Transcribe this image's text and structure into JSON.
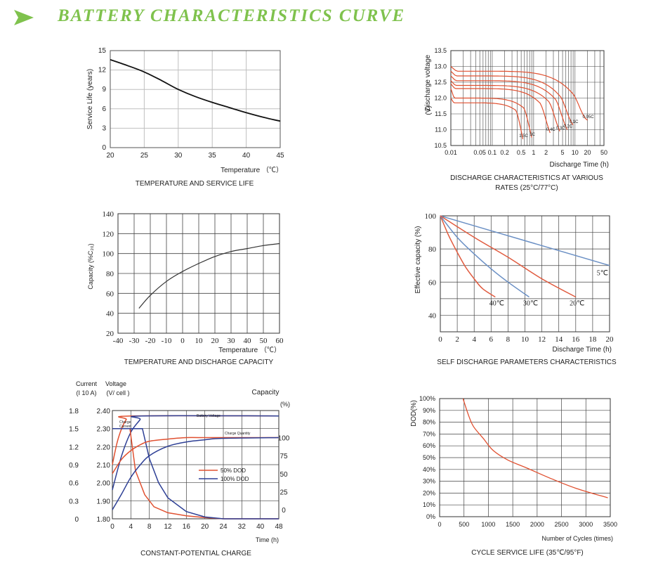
{
  "page": {
    "title": "BATTERY  CHARACTERISTICS CURVE",
    "accent": "#7fc24d"
  },
  "chart_data": [
    {
      "id": "life",
      "type": "line",
      "title": "TEMPERATURE AND SERVICE LIFE",
      "xlabel": "Temperature （℃）",
      "ylabel": "Service Life (years)",
      "xlim": [
        20,
        45
      ],
      "ylim": [
        0,
        15
      ],
      "xticks": [
        20,
        25,
        30,
        35,
        40,
        45
      ],
      "yticks": [
        0,
        3,
        6,
        9,
        12,
        15
      ],
      "grid": true,
      "series": [
        {
          "color": "#111111",
          "x": [
            20,
            22.5,
            25,
            27.5,
            30,
            32.5,
            35,
            37.5,
            40,
            42.5,
            45
          ],
          "y": [
            13.6,
            12.7,
            11.7,
            10.4,
            9.0,
            7.9,
            7.0,
            6.2,
            5.4,
            4.7,
            4.1
          ]
        }
      ]
    },
    {
      "id": "discharge",
      "type": "line",
      "title": "DISCHARGE CHARACTERISTICS AT VARIOUS RATES (25°C/77°C)",
      "xlabel": "Discharge Time (h)",
      "ylabel": "Discharge voltage (V)",
      "xscale": "log",
      "xlim": [
        0.01,
        50
      ],
      "ylim": [
        10.5,
        13.5
      ],
      "xticks": [
        0.01,
        0.05,
        0.1,
        0.2,
        0.5,
        1,
        2,
        5,
        10,
        20,
        50
      ],
      "xticklabels": [
        "0.01",
        "0.05",
        "0.1",
        "0.2",
        "0.5",
        "1",
        "2",
        "5",
        "10",
        "20",
        "50"
      ],
      "yticks": [
        10.5,
        11.0,
        11.5,
        12.0,
        12.5,
        13.0,
        13.5
      ],
      "yticklabels": [
        "10.5",
        "11.0",
        "11.5",
        "12.0",
        "12.5",
        "13.0",
        "13.5"
      ],
      "grid": true,
      "series": [
        {
          "label": "1.5C",
          "color": "#e05030",
          "end_time": 0.55,
          "start_v": 12.0,
          "flat_v": 11.85,
          "end_v": 10.7
        },
        {
          "label": "1C",
          "color": "#e05030",
          "end_time": 0.9,
          "start_v": 12.3,
          "flat_v": 12.0,
          "end_v": 10.75
        },
        {
          "label": "0.4C",
          "color": "#e05030",
          "end_time": 2.5,
          "start_v": 12.45,
          "flat_v": 12.3,
          "end_v": 10.9
        },
        {
          "label": "0.3C",
          "color": "#e05030",
          "end_time": 4.3,
          "start_v": 12.55,
          "flat_v": 12.4,
          "end_v": 10.95
        },
        {
          "label": "0.2C",
          "color": "#e05030",
          "end_time": 6.5,
          "start_v": 12.7,
          "flat_v": 12.55,
          "end_v": 11.0
        },
        {
          "label": "0.1C",
          "color": "#e05030",
          "end_time": 9.0,
          "start_v": 12.85,
          "flat_v": 12.7,
          "end_v": 11.15
        },
        {
          "label": "0.05C",
          "color": "#e05030",
          "end_time": 20.0,
          "start_v": 13.0,
          "flat_v": 12.85,
          "end_v": 11.3
        }
      ]
    },
    {
      "id": "capacity",
      "type": "line",
      "title": "TEMPERATURE AND DISCHARGE CAPACITY",
      "xlabel": "Temperature （℃）",
      "ylabel": "Capacity (%C₂₀)",
      "xlim": [
        -40,
        60
      ],
      "ylim": [
        20,
        140
      ],
      "xticks": [
        -40,
        -30,
        -20,
        -10,
        0,
        10,
        20,
        30,
        40,
        50,
        60
      ],
      "yticks": [
        20,
        40,
        60,
        80,
        100,
        120,
        140
      ],
      "grid": true,
      "series": [
        {
          "color": "#333333",
          "x": [
            -27,
            -20,
            -10,
            0,
            10,
            20,
            30,
            40,
            50,
            60
          ],
          "y": [
            45,
            58,
            72,
            82,
            90,
            97,
            102,
            105,
            108,
            110
          ]
        }
      ]
    },
    {
      "id": "selfdis",
      "type": "line",
      "title": "SELF DISCHARGE PARAMETERS CHARACTERISTICS",
      "xlabel": "Discharge Time (h)",
      "ylabel": "Effective capacity (%)",
      "xlim": [
        0,
        20
      ],
      "ylim": [
        30,
        100
      ],
      "xticks": [
        0,
        2,
        4,
        6,
        8,
        10,
        12,
        14,
        16,
        18,
        20
      ],
      "yticks": [
        40,
        60,
        80,
        100
      ],
      "grid": true,
      "series": [
        {
          "name": "5℃",
          "color": "#6a8fc4",
          "x": [
            0,
            10,
            20
          ],
          "y": [
            100,
            85,
            70
          ]
        },
        {
          "name": "40℃",
          "color": "#e05a3e",
          "x": [
            0,
            1,
            2,
            3,
            4,
            5,
            6.5
          ],
          "y": [
            100,
            88,
            78,
            69,
            62,
            56,
            51
          ]
        },
        {
          "name": "30℃",
          "color": "#6a8fc4",
          "x": [
            0,
            2,
            4,
            6,
            8,
            10.5
          ],
          "y": [
            100,
            87,
            77,
            68,
            60,
            51
          ]
        },
        {
          "name": "20℃",
          "color": "#e05a3e",
          "x": [
            0,
            4,
            8,
            12,
            16
          ],
          "y": [
            100,
            87,
            75,
            62,
            51
          ]
        }
      ]
    },
    {
      "id": "charge",
      "type": "line",
      "title": "CONSTANT-POTENTIAL CHARGE",
      "xlabel": "Time (h)",
      "x_category_labels": [
        "0",
        "4",
        "8",
        "12",
        "16",
        "20",
        "24",
        "32",
        "40",
        "48"
      ],
      "current_axis": {
        "label1": "Current",
        "label2": "(I 10 A)",
        "ticks": [
          "0",
          "0.3",
          "0.6",
          "0.9",
          "1.2",
          "1.5",
          "1.8"
        ]
      },
      "voltage_axis": {
        "label1": "Voltage",
        "label2": "(V/ cell )",
        "ticks": [
          "1.80",
          "1.90",
          "2.00",
          "2.10",
          "2.20",
          "2.30",
          "2.40"
        ]
      },
      "capacity_axis": {
        "label1": "Capacity",
        "label2": "(%)",
        "ticks": [
          "0",
          "25",
          "50",
          "75",
          "100"
        ]
      },
      "annotations": [
        "Battery Voltage",
        "Charge Current",
        "Charge Quantity"
      ],
      "legend": [
        {
          "name": "50% DOD",
          "color": "#e05030"
        },
        {
          "name": "100% DOD",
          "color": "#2d3f95"
        }
      ],
      "series": [
        {
          "name": "Battery Voltage 50% DOD",
          "color": "#e05030",
          "x": [
            0,
            1,
            2,
            3,
            4,
            48
          ],
          "y_axis": "voltage",
          "y": [
            2.1,
            2.22,
            2.3,
            2.35,
            2.37,
            2.37
          ]
        },
        {
          "name": "Battery Voltage 100% DOD",
          "color": "#2d3f95",
          "x": [
            0,
            2,
            4,
            6,
            6.3,
            48
          ],
          "y_axis": "voltage",
          "y": [
            1.96,
            2.15,
            2.28,
            2.35,
            2.37,
            2.37
          ]
        },
        {
          "name": "Charge Current 50% DOD",
          "color": "#e05030",
          "x": [
            0,
            3.8,
            5,
            7,
            9,
            12,
            16,
            20,
            24,
            48
          ],
          "y_axis": "current",
          "y": [
            1.5,
            1.5,
            0.8,
            0.4,
            0.2,
            0.1,
            0.05,
            0.02,
            0.0,
            0.0
          ]
        },
        {
          "name": "Charge Current 100% DOD",
          "color": "#2d3f95",
          "x": [
            0,
            5.5,
            6.5,
            8,
            10,
            12,
            16,
            20,
            24,
            48
          ],
          "y_axis": "current",
          "y": [
            1.5,
            1.5,
            1.5,
            1.0,
            0.6,
            0.35,
            0.12,
            0.03,
            0.0,
            0.0
          ]
        },
        {
          "name": "Charge Quantity 50% DOD",
          "color": "#e05030",
          "x": [
            0,
            2,
            4,
            6,
            8,
            12,
            16,
            20,
            48
          ],
          "y_axis": "capacity",
          "y": [
            50,
            70,
            82,
            90,
            95,
            98,
            100,
            100,
            100
          ]
        },
        {
          "name": "Charge Quantity 100% DOD",
          "color": "#2d3f95",
          "x": [
            0,
            2,
            4,
            6,
            8,
            12,
            16,
            20,
            24,
            48
          ],
          "y_axis": "capacity",
          "y": [
            0,
            22,
            45,
            62,
            75,
            88,
            94,
            97,
            99,
            100
          ]
        }
      ]
    },
    {
      "id": "cycle",
      "type": "line",
      "title": "CYCLE SERVICE LIFE (35℃/95°F)",
      "xlabel": "Number of Cycles (times)",
      "ylabel": "DOD(%)",
      "xlim": [
        0,
        3500
      ],
      "ylim": [
        0,
        100
      ],
      "xticks": [
        0,
        500,
        1000,
        1500,
        2000,
        2500,
        3000,
        3500
      ],
      "yticks": [
        0,
        10,
        20,
        30,
        40,
        50,
        60,
        70,
        80,
        90,
        100
      ],
      "yticklabels": [
        "0%",
        "10%",
        "20%",
        "30%",
        "40%",
        "50%",
        "60%",
        "70%",
        "80%",
        "90%",
        "100%"
      ],
      "grid": true,
      "series": [
        {
          "color": "#e05030",
          "x": [
            480,
            600,
            700,
            900,
            1100,
            1400,
            1800,
            2300,
            2800,
            3450
          ],
          "y": [
            100,
            85,
            76,
            66,
            56,
            48,
            41,
            32,
            24,
            16
          ]
        }
      ]
    }
  ]
}
